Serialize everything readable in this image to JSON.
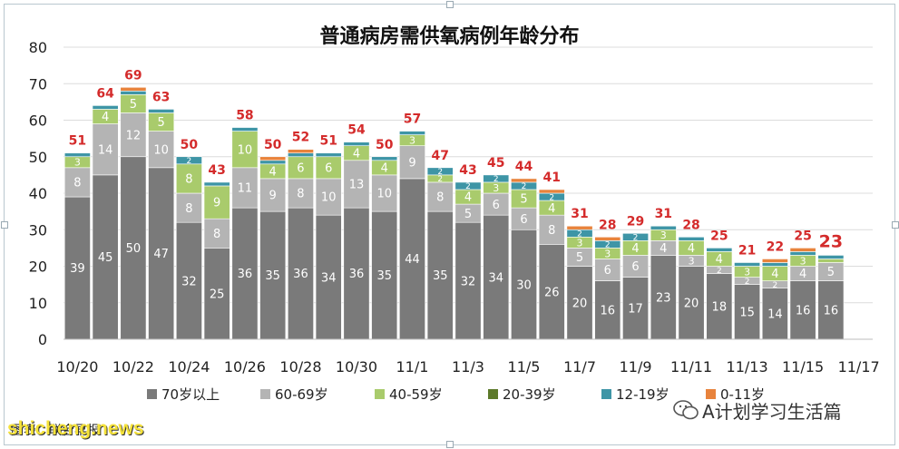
{
  "chart_data": {
    "type": "bar",
    "stacked": true,
    "title": "普通病房需供氧病例年龄分布",
    "ylim": [
      0,
      80
    ],
    "yticks": [
      0,
      10,
      20,
      30,
      40,
      50,
      60,
      70,
      80
    ],
    "categories": [
      "10/20",
      "10/21",
      "10/22",
      "10/23",
      "10/24",
      "10/25",
      "10/26",
      "10/27",
      "10/28",
      "10/29",
      "10/30",
      "10/31",
      "11/1",
      "11/2",
      "11/3",
      "11/4",
      "11/5",
      "11/6",
      "11/7",
      "11/8",
      "11/9",
      "11/10",
      "11/11",
      "11/12",
      "11/13",
      "11/14",
      "11/15",
      "11/16",
      "11/17"
    ],
    "xtick_labels": [
      "10/20",
      "10/22",
      "10/24",
      "10/26",
      "10/28",
      "10/30",
      "11/1",
      "11/3",
      "11/5",
      "11/7",
      "11/9",
      "11/11",
      "11/13",
      "11/15",
      "11/17"
    ],
    "series": [
      {
        "name": "70岁以上",
        "color": "#7a7a7a",
        "values": [
          39,
          45,
          50,
          47,
          32,
          25,
          36,
          35,
          36,
          34,
          36,
          35,
          44,
          35,
          32,
          34,
          30,
          26,
          20,
          16,
          17,
          23,
          20,
          18,
          15,
          14,
          16,
          16,
          null
        ]
      },
      {
        "name": "60-69岁",
        "color": "#b4b4b4",
        "values": [
          8,
          14,
          12,
          10,
          8,
          8,
          11,
          9,
          8,
          10,
          13,
          10,
          9,
          8,
          5,
          6,
          6,
          8,
          5,
          6,
          6,
          4,
          3,
          2,
          2,
          2,
          4,
          5,
          null
        ]
      },
      {
        "name": "40-59岁",
        "color": "#a9cb6c",
        "values": [
          3,
          4,
          5,
          5,
          8,
          9,
          10,
          4,
          6,
          6,
          4,
          4,
          3,
          2,
          4,
          3,
          5,
          4,
          3,
          3,
          4,
          3,
          4,
          4,
          3,
          4,
          3,
          1,
          null
        ]
      },
      {
        "name": "20-39岁",
        "color": "#5d7a2a",
        "values": [
          0,
          0,
          0,
          0,
          0,
          0,
          0,
          0,
          0,
          0,
          0,
          0,
          0,
          0,
          0,
          0,
          0,
          0,
          0,
          0,
          0,
          0,
          0,
          0,
          0,
          0,
          0,
          0,
          null
        ]
      },
      {
        "name": "12-19岁",
        "color": "#3e95a6",
        "values": [
          1,
          1,
          1,
          1,
          2,
          1,
          1,
          1,
          1,
          1,
          1,
          1,
          1,
          2,
          2,
          2,
          2,
          2,
          2,
          2,
          2,
          1,
          1,
          1,
          1,
          1,
          1,
          1,
          null
        ]
      },
      {
        "name": "0-11岁",
        "color": "#e8833c",
        "values": [
          0,
          0,
          1,
          0,
          0,
          0,
          0,
          1,
          1,
          0,
          0,
          0,
          0,
          0,
          0,
          0,
          1,
          1,
          1,
          1,
          0,
          0,
          0,
          0,
          0,
          1,
          1,
          0,
          null
        ]
      }
    ],
    "totals": [
      51,
      64,
      69,
      63,
      50,
      43,
      58,
      50,
      52,
      51,
      54,
      50,
      57,
      47,
      43,
      45,
      44,
      41,
      31,
      28,
      29,
      31,
      28,
      25,
      21,
      22,
      25,
      23,
      null
    ],
    "total_label_color": "#d42b2b",
    "legend_position": "bottom"
  },
  "caption": "图表：联合早报",
  "watermark_site": "shicheng.news",
  "watermark_account": "A计划学习生活篇",
  "icons": {
    "wechat": "wechat-icon"
  }
}
